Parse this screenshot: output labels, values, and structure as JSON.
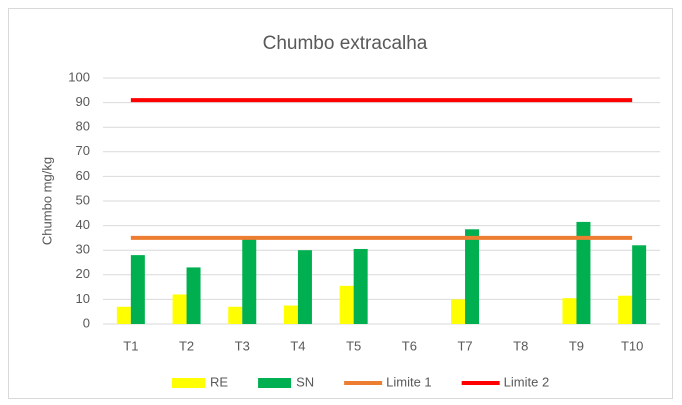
{
  "chart_data": {
    "type": "bar",
    "title": "Chumbo extracalha",
    "y_label": "Chumbo mg/kg",
    "categories": [
      "T1",
      "T2",
      "T3",
      "T4",
      "T5",
      "T6",
      "T7",
      "T8",
      "T9",
      "T10"
    ],
    "series": [
      {
        "name": "RE",
        "type": "bar",
        "color": "#ffff00",
        "values": [
          7,
          12,
          7,
          7.5,
          15.5,
          null,
          10,
          null,
          10.5,
          11.5
        ]
      },
      {
        "name": "SN",
        "type": "bar",
        "color": "#00b050",
        "values": [
          28,
          23,
          35,
          30,
          30.5,
          null,
          38.5,
          null,
          41.5,
          32
        ]
      },
      {
        "name": "Limite 1",
        "type": "line",
        "color": "#ed7d31",
        "values": [
          35,
          35,
          35,
          35,
          35,
          35,
          35,
          35,
          35,
          35
        ]
      },
      {
        "name": "Limite 2",
        "type": "line",
        "color": "#ff0000",
        "values": [
          91,
          91,
          91,
          91,
          91,
          91,
          91,
          91,
          91,
          91
        ]
      }
    ],
    "ylim": [
      0,
      100
    ],
    "yticks": [
      0,
      10,
      20,
      30,
      40,
      50,
      60,
      70,
      80,
      90,
      100
    ],
    "grid": true,
    "legend": "bottom"
  }
}
